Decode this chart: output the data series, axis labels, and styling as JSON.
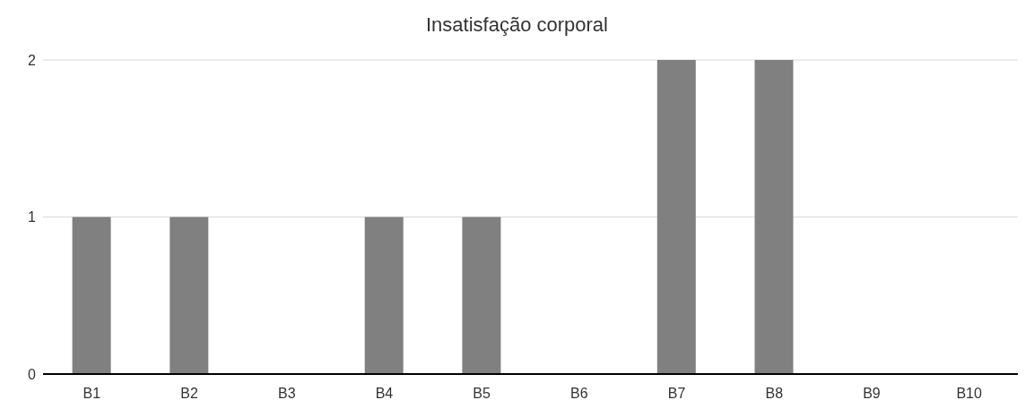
{
  "chart_data": {
    "type": "bar",
    "title": "Insatisfação corporal",
    "categories": [
      "B1",
      "B2",
      "B3",
      "B4",
      "B5",
      "B6",
      "B7",
      "B8",
      "B9",
      "B10"
    ],
    "values": [
      1,
      1,
      0,
      1,
      1,
      0,
      2,
      2,
      0,
      0
    ],
    "color": "#808080",
    "ylim": [
      0,
      2
    ],
    "yticks": [
      0,
      1,
      2
    ],
    "grid": "y"
  }
}
